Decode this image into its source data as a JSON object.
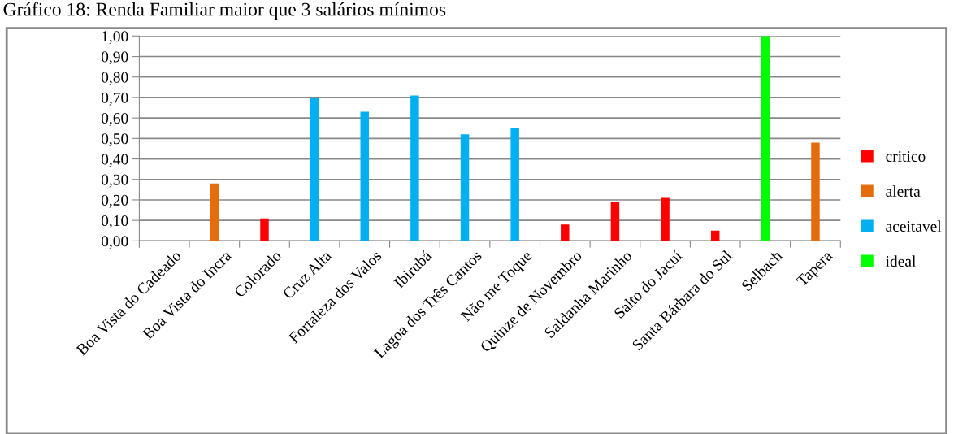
{
  "chart_data": {
    "type": "bar",
    "title": "Gráfico 18: Renda Familiar maior que 3 salários mínimos",
    "categories": [
      "Boa Vista do Cadeado",
      "Boa Vista do Incra",
      "Colorado",
      "Cruz Alta",
      "Fortaleza dos Valos",
      "Ibirubá",
      "Lagoa dos Três Cantos",
      "Não me Toque",
      "Quinze de Novembro",
      "Saldanha Marinho",
      "Salto do Jacuí",
      "Santa Bárbara do Sul",
      "Selbach",
      "Tapera"
    ],
    "series": [
      {
        "name": "critico",
        "color": "#ff0000",
        "values": [
          null,
          null,
          0.11,
          null,
          null,
          null,
          null,
          null,
          0.08,
          0.19,
          0.21,
          0.05,
          null,
          null
        ]
      },
      {
        "name": "alerta",
        "color": "#e46c0a",
        "values": [
          null,
          0.28,
          null,
          null,
          null,
          null,
          null,
          null,
          null,
          null,
          null,
          null,
          null,
          0.48
        ]
      },
      {
        "name": "aceitavel",
        "color": "#00b0f0",
        "values": [
          null,
          null,
          null,
          0.7,
          0.63,
          0.71,
          0.52,
          0.55,
          null,
          null,
          null,
          null,
          null,
          null
        ]
      },
      {
        "name": "ideal",
        "color": "#00ff00",
        "values": [
          null,
          null,
          null,
          null,
          null,
          null,
          null,
          null,
          null,
          null,
          null,
          null,
          1.0,
          null
        ]
      }
    ],
    "ylim": [
      0,
      1
    ],
    "yticks": [
      {
        "value": 0,
        "label": "0,00"
      },
      {
        "value": 0.1,
        "label": "0,10"
      },
      {
        "value": 0.2,
        "label": "0,20"
      },
      {
        "value": 0.3,
        "label": "0,30"
      },
      {
        "value": 0.4,
        "label": "0,40"
      },
      {
        "value": 0.5,
        "label": "0,50"
      },
      {
        "value": 0.6,
        "label": "0,60"
      },
      {
        "value": 0.7,
        "label": "0,70"
      },
      {
        "value": 0.8,
        "label": "0,80"
      },
      {
        "value": 0.9,
        "label": "0,90"
      },
      {
        "value": 1,
        "label": "1,00"
      }
    ],
    "grid": "y",
    "legend": "right"
  }
}
